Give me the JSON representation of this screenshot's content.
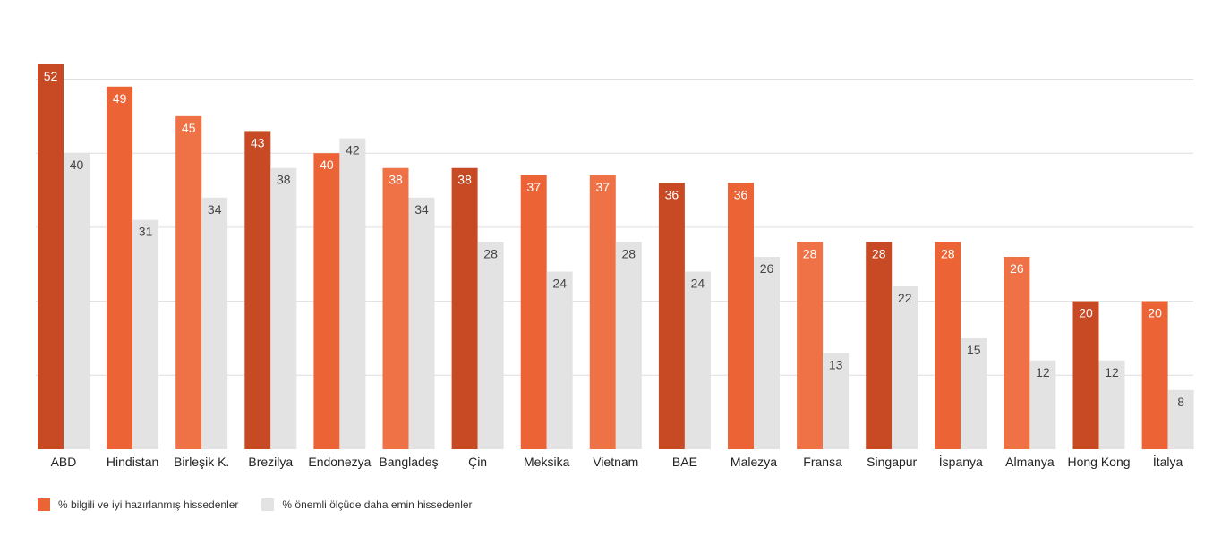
{
  "chart_data": {
    "type": "bar",
    "title": "",
    "xlabel": "",
    "ylabel": "",
    "ylim": [
      0,
      52
    ],
    "grid": true,
    "legend_position": "bottom-left",
    "categories": [
      "ABD",
      "Hindistan",
      "Birleşik K.",
      "Brezilya",
      "Endonezya",
      "Bangladeş",
      "Çin",
      "Meksika",
      "Vietnam",
      "BAE",
      "Malezya",
      "Fransa",
      "Singapur",
      "İspanya",
      "Almanya",
      "Hong Kong",
      "İtalya"
    ],
    "series": [
      {
        "name": "% bilgili ve iyi hazırlanmış hissedenler",
        "values": [
          52,
          49,
          45,
          43,
          40,
          38,
          38,
          37,
          37,
          36,
          36,
          28,
          28,
          28,
          26,
          20,
          20
        ],
        "colors": [
          "#c84a24",
          "#ec6436",
          "#ef7247",
          "#c84a24",
          "#ec6436",
          "#ef7247",
          "#c84a24",
          "#ec6436",
          "#ef7247",
          "#c84a24",
          "#ec6436",
          "#ef7247",
          "#c84a24",
          "#ec6436",
          "#ef7247",
          "#c84a24",
          "#ec6436"
        ]
      },
      {
        "name": "% önemli ölçüde daha emin hissedenler",
        "values": [
          40,
          31,
          34,
          38,
          42,
          34,
          28,
          24,
          28,
          24,
          26,
          13,
          22,
          15,
          12,
          12,
          8
        ],
        "color": "#e3e3e4"
      }
    ],
    "legend_colors": [
      "#ec6436",
      "#e3e3e4"
    ],
    "gridline_color": "#dedede",
    "label_color_light": "#ffffff",
    "label_color_dark": "#444444"
  }
}
